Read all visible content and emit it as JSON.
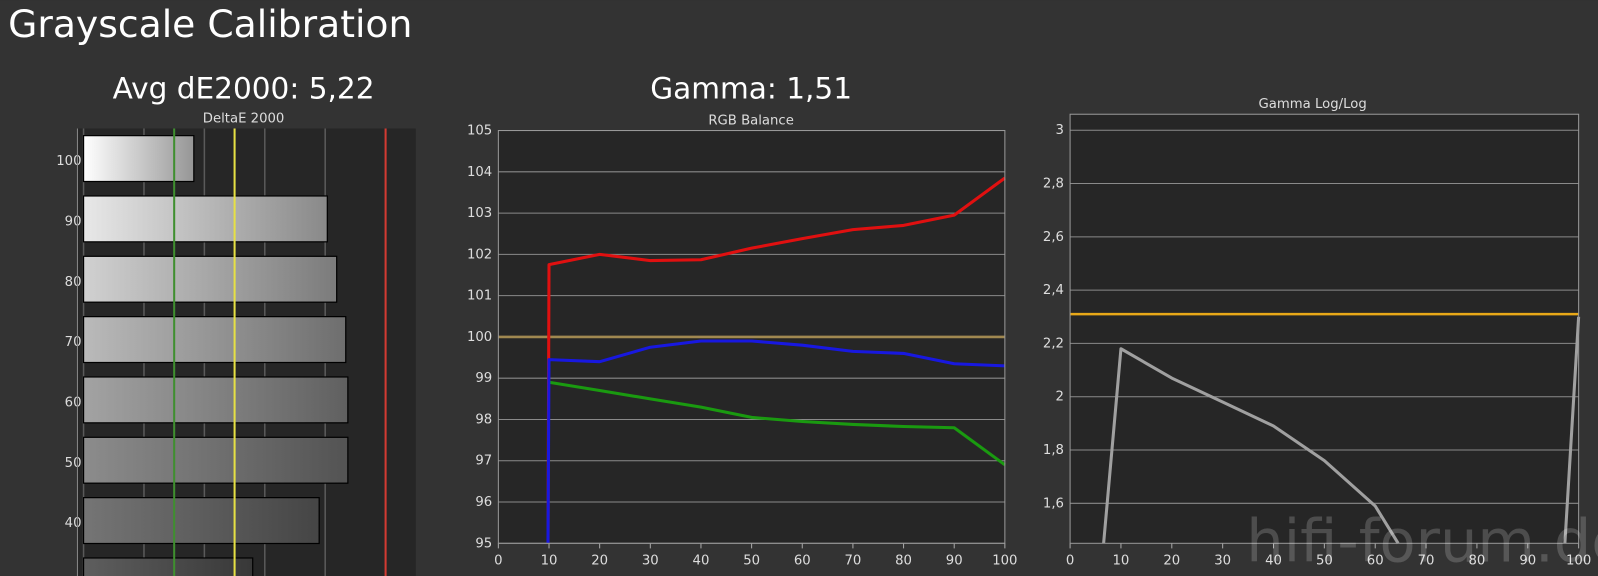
{
  "title": "Grayscale Calibration",
  "watermark": "hifi-forum.de",
  "chart_data": [
    {
      "type": "hbar",
      "heading": "Avg dE2000: 5,22",
      "title": "DeltaE 2000",
      "categories": [
        "100",
        "90",
        "80",
        "70",
        "60",
        "50",
        "40",
        null
      ],
      "values": [
        3.65,
        8.07,
        8.38,
        8.68,
        8.75,
        8.75,
        7.8,
        5.6
      ],
      "xlim": [
        0,
        11
      ],
      "xticks": [
        0,
        2,
        4,
        6,
        8,
        10
      ],
      "reference_lines": [
        {
          "value": 3,
          "color": "#3f8f2f"
        },
        {
          "value": 5,
          "color": "#e6e044"
        },
        {
          "value": 10,
          "color": "#d23a32"
        }
      ]
    },
    {
      "type": "line",
      "heading": "Gamma: 1,51",
      "title": "RGB Balance",
      "x": [
        9.8,
        10,
        20,
        30,
        40,
        50,
        60,
        70,
        80,
        90,
        100
      ],
      "series": [
        {
          "color": "#e01010",
          "values": [
            95,
            101.75,
            102.0,
            101.85,
            101.87,
            102.15,
            102.38,
            102.6,
            102.7,
            102.95,
            103.85
          ]
        },
        {
          "color": "#1a9a10",
          "values": [
            null,
            98.9,
            98.7,
            98.5,
            98.3,
            98.05,
            97.95,
            97.88,
            97.83,
            97.8,
            96.9
          ]
        },
        {
          "color": "#1818e0",
          "values": [
            95,
            99.45,
            99.4,
            99.75,
            99.9,
            99.9,
            99.8,
            99.65,
            99.6,
            99.35,
            99.3
          ]
        }
      ],
      "xlim": [
        0,
        100
      ],
      "xticks": [
        0,
        10,
        20,
        30,
        40,
        50,
        60,
        70,
        80,
        90,
        100
      ],
      "ylim": [
        95,
        105
      ],
      "yticks": [
        95,
        96,
        97,
        98,
        99,
        100,
        101,
        102,
        103,
        104,
        105
      ],
      "reference_lines": [
        {
          "value": 100,
          "color": "#a08850"
        }
      ]
    },
    {
      "type": "line",
      "title": "Gamma Log/Log",
      "x": [
        6.6,
        10,
        20,
        30,
        40,
        50,
        60,
        64.5,
        80,
        97.3,
        100
      ],
      "series": [
        {
          "color": "#a0a0a0",
          "values": [
            1.45,
            2.18,
            2.07,
            1.98,
            1.89,
            1.76,
            1.59,
            1.45,
            null,
            1.45,
            2.3
          ]
        }
      ],
      "xlim": [
        0,
        100
      ],
      "xticks": [
        0,
        10,
        20,
        30,
        40,
        50,
        60,
        70,
        80,
        90,
        100
      ],
      "ylim": [
        1.45,
        3.06
      ],
      "yticks": [
        {
          "value": 1.6,
          "label": "1,6"
        },
        {
          "value": 1.8,
          "label": "1,8"
        },
        2,
        {
          "value": 2.2,
          "label": "2,2"
        },
        {
          "value": 2.4,
          "label": "2,4"
        },
        {
          "value": 2.6,
          "label": "2,6"
        },
        {
          "value": 2.8,
          "label": "2,8"
        },
        3
      ],
      "reference_lines": [
        {
          "value": 2.31,
          "color": "#e8a818"
        }
      ]
    }
  ]
}
